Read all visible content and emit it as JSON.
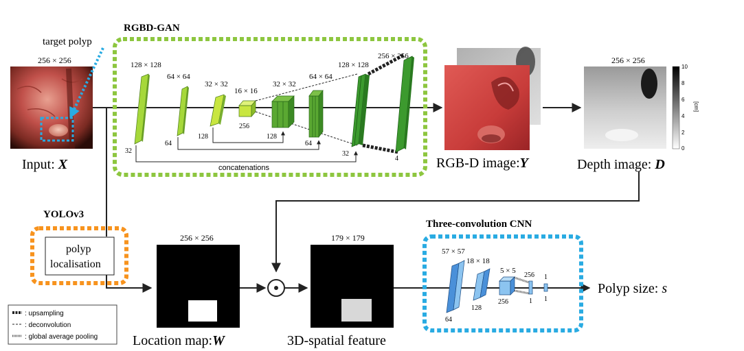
{
  "labels": {
    "target_polyp": "target polyp",
    "input_size": "256 × 256",
    "input_caption": "Input: ",
    "input_var": "X",
    "rgbd_gan_title": "RGBD-GAN",
    "concatenations": "concatenations",
    "rgbd_caption": "RGB-D image:",
    "rgbd_var": "Y",
    "depth_size": "256 × 256",
    "depth_caption": "Depth image: ",
    "depth_var": "D",
    "colorbar_unit": "[cm]",
    "colorbar_ticks": [
      "10",
      "8",
      "6",
      "4",
      "2",
      "0"
    ],
    "yolo_title": "YOLOv3",
    "polyp_line1": "polyp",
    "polyp_line2": "localisation",
    "location_size": "256 × 256",
    "location_caption": "Location map:",
    "location_var": "W",
    "spatial_size": "179 × 179",
    "spatial_caption": "3D-spatial feature",
    "cnn_title": "Three-convolution CNN",
    "output_caption": "Polyp size: ",
    "output_var": "s",
    "odot_symbol": "⊙"
  },
  "generator_layers": [
    {
      "size": "128 × 128",
      "channels": "32"
    },
    {
      "size": "64 × 64",
      "channels": "64"
    },
    {
      "size": "32 × 32",
      "channels": "128"
    },
    {
      "size": "16 × 16",
      "channels": "256"
    },
    {
      "size": "32 × 32",
      "channels": "128"
    },
    {
      "size": "64 × 64",
      "channels": "64"
    },
    {
      "size": "128 × 128",
      "channels": "32"
    },
    {
      "size": "256 × 256",
      "channels": "4"
    }
  ],
  "cnn_layers": [
    {
      "size": "57 × 57",
      "channels": "64"
    },
    {
      "size": "18 × 18",
      "channels": "128"
    },
    {
      "size": "5 × 5",
      "channels": "256"
    }
  ],
  "cnn_fc": [
    "256",
    "1",
    "1",
    "1"
  ],
  "legend": [
    {
      "name": "upsampling",
      "text": ": upsampling"
    },
    {
      "name": "deconvolution",
      "text": ": deconvolution"
    },
    {
      "name": "global-average-pooling",
      "text": ": global average pooling"
    }
  ],
  "colors": {
    "gan_border": "#8dc63f",
    "yolo_border": "#f7931e",
    "cnn_border": "#29abe2",
    "target_arrow": "#29abe2",
    "green_dark": "#3c9a2e",
    "green_light": "#a6d83a",
    "blue_layer": "#4a90d9"
  }
}
